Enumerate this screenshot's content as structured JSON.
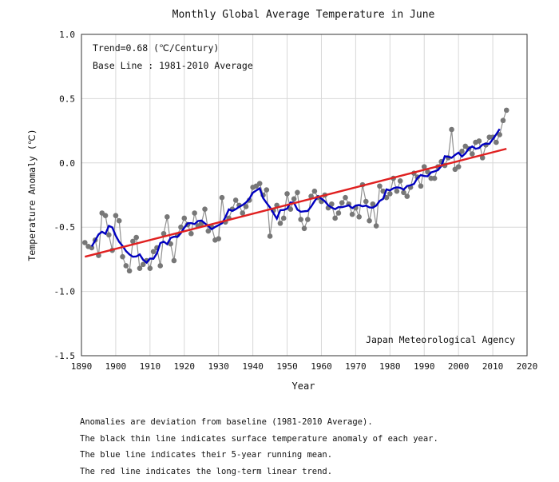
{
  "chart_data": {
    "type": "line",
    "title": "Monthly Global Average Temperature in June",
    "xlabel": "Year",
    "ylabel": "Temperature Anomaly (℃)",
    "xlim": [
      1890,
      2020
    ],
    "ylim": [
      -1.5,
      1.0
    ],
    "x_ticks": [
      "1890",
      "1900",
      "1910",
      "1920",
      "1930",
      "1940",
      "1950",
      "1960",
      "1970",
      "1980",
      "1990",
      "2000",
      "2010",
      "2020"
    ],
    "y_ticks": [
      "1.0",
      "0.5",
      "0.0",
      "-0.5",
      "-1.0",
      "-1.5"
    ],
    "grid": true,
    "annotations": {
      "trend": "Trend=0.68 (℃/Century)",
      "baseline": "Base Line : 1981-2010 Average",
      "source": "Japan Meteorological Agency"
    },
    "x_start": 1891,
    "series": [
      {
        "name": "Annual anomaly",
        "color": "#808080",
        "values": [
          -0.62,
          -0.65,
          -0.66,
          -0.6,
          -0.72,
          -0.39,
          -0.41,
          -0.56,
          -0.68,
          -0.41,
          -0.45,
          -0.73,
          -0.8,
          -0.84,
          -0.61,
          -0.58,
          -0.82,
          -0.79,
          -0.76,
          -0.82,
          -0.69,
          -0.66,
          -0.8,
          -0.55,
          -0.42,
          -0.63,
          -0.76,
          -0.56,
          -0.5,
          -0.43,
          -0.48,
          -0.55,
          -0.39,
          -0.49,
          -0.47,
          -0.36,
          -0.53,
          -0.5,
          -0.6,
          -0.59,
          -0.27,
          -0.46,
          -0.43,
          -0.36,
          -0.29,
          -0.33,
          -0.39,
          -0.34,
          -0.29,
          -0.19,
          -0.18,
          -0.16,
          -0.25,
          -0.21,
          -0.57,
          -0.37,
          -0.33,
          -0.47,
          -0.43,
          -0.24,
          -0.36,
          -0.28,
          -0.23,
          -0.44,
          -0.51,
          -0.44,
          -0.26,
          -0.22,
          -0.27,
          -0.3,
          -0.25,
          -0.35,
          -0.32,
          -0.43,
          -0.39,
          -0.31,
          -0.27,
          -0.32,
          -0.4,
          -0.35,
          -0.42,
          -0.17,
          -0.3,
          -0.45,
          -0.32,
          -0.49,
          -0.18,
          -0.22,
          -0.27,
          -0.24,
          -0.12,
          -0.22,
          -0.14,
          -0.23,
          -0.26,
          -0.19,
          -0.08,
          -0.11,
          -0.18,
          -0.03,
          -0.07,
          -0.12,
          -0.12,
          -0.03,
          0.01,
          -0.02,
          0.04,
          0.26,
          -0.05,
          -0.03,
          0.09,
          0.13,
          0.11,
          0.07,
          0.16,
          0.17,
          0.04,
          0.14,
          0.2,
          0.2,
          0.16,
          0.22,
          0.33,
          0.41
        ]
      },
      {
        "name": "5-year running mean",
        "color": "#0000c0",
        "window": 5
      },
      {
        "name": "Long-term linear trend",
        "color": "#e02020",
        "slope_per_century": 0.68,
        "x": [
          1891,
          2014
        ],
        "y": [
          -0.73,
          0.11
        ]
      }
    ]
  },
  "notes": [
    "Anomalies are deviation from baseline (1981-2010 Average).",
    "The black thin line indicates surface temperature anomaly of each year.",
    "The blue line indicates their 5-year running mean.",
    "The red line indicates the long-term linear trend."
  ]
}
